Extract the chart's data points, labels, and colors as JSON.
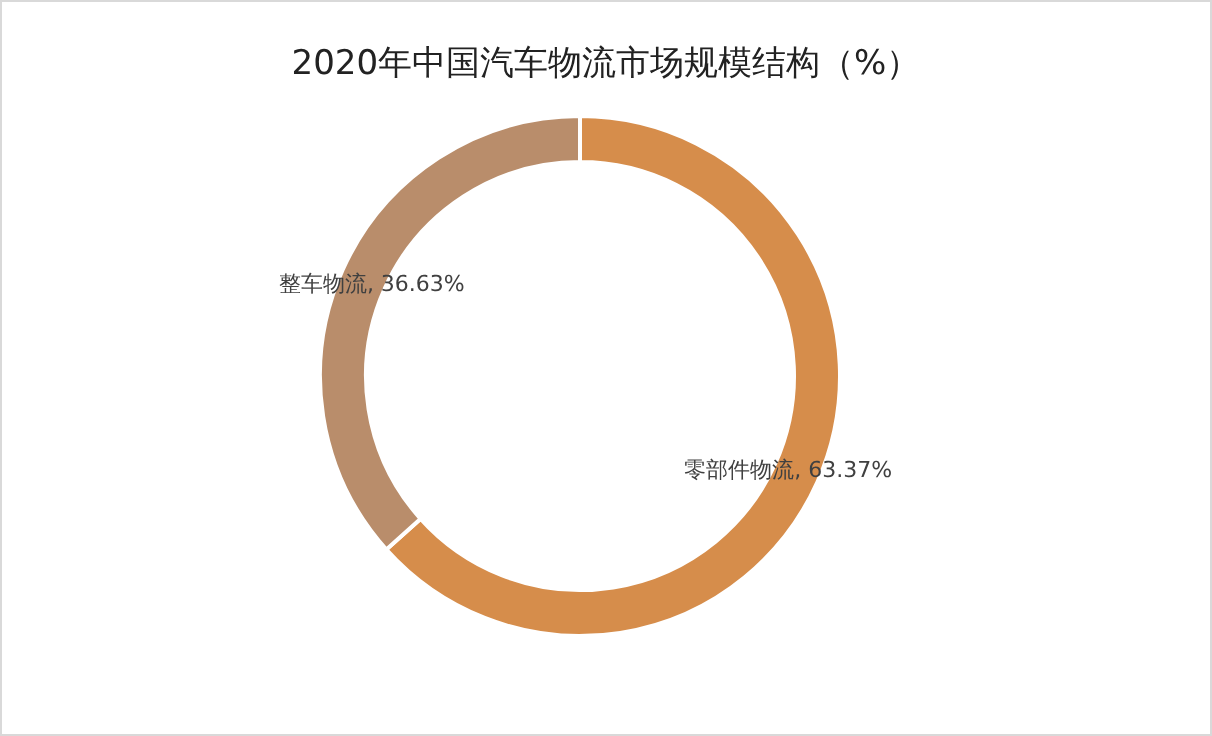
{
  "chart_data": {
    "type": "donut",
    "title": "2020年中国汽车物流市场规模结构（%）",
    "categories": [
      "零部件物流",
      "整车物流"
    ],
    "values": [
      63.37,
      36.63
    ],
    "value_labels": [
      ", 63.37%",
      ", 36.63%"
    ],
    "colors": [
      "#d68d4b",
      "#b98d6b"
    ]
  }
}
